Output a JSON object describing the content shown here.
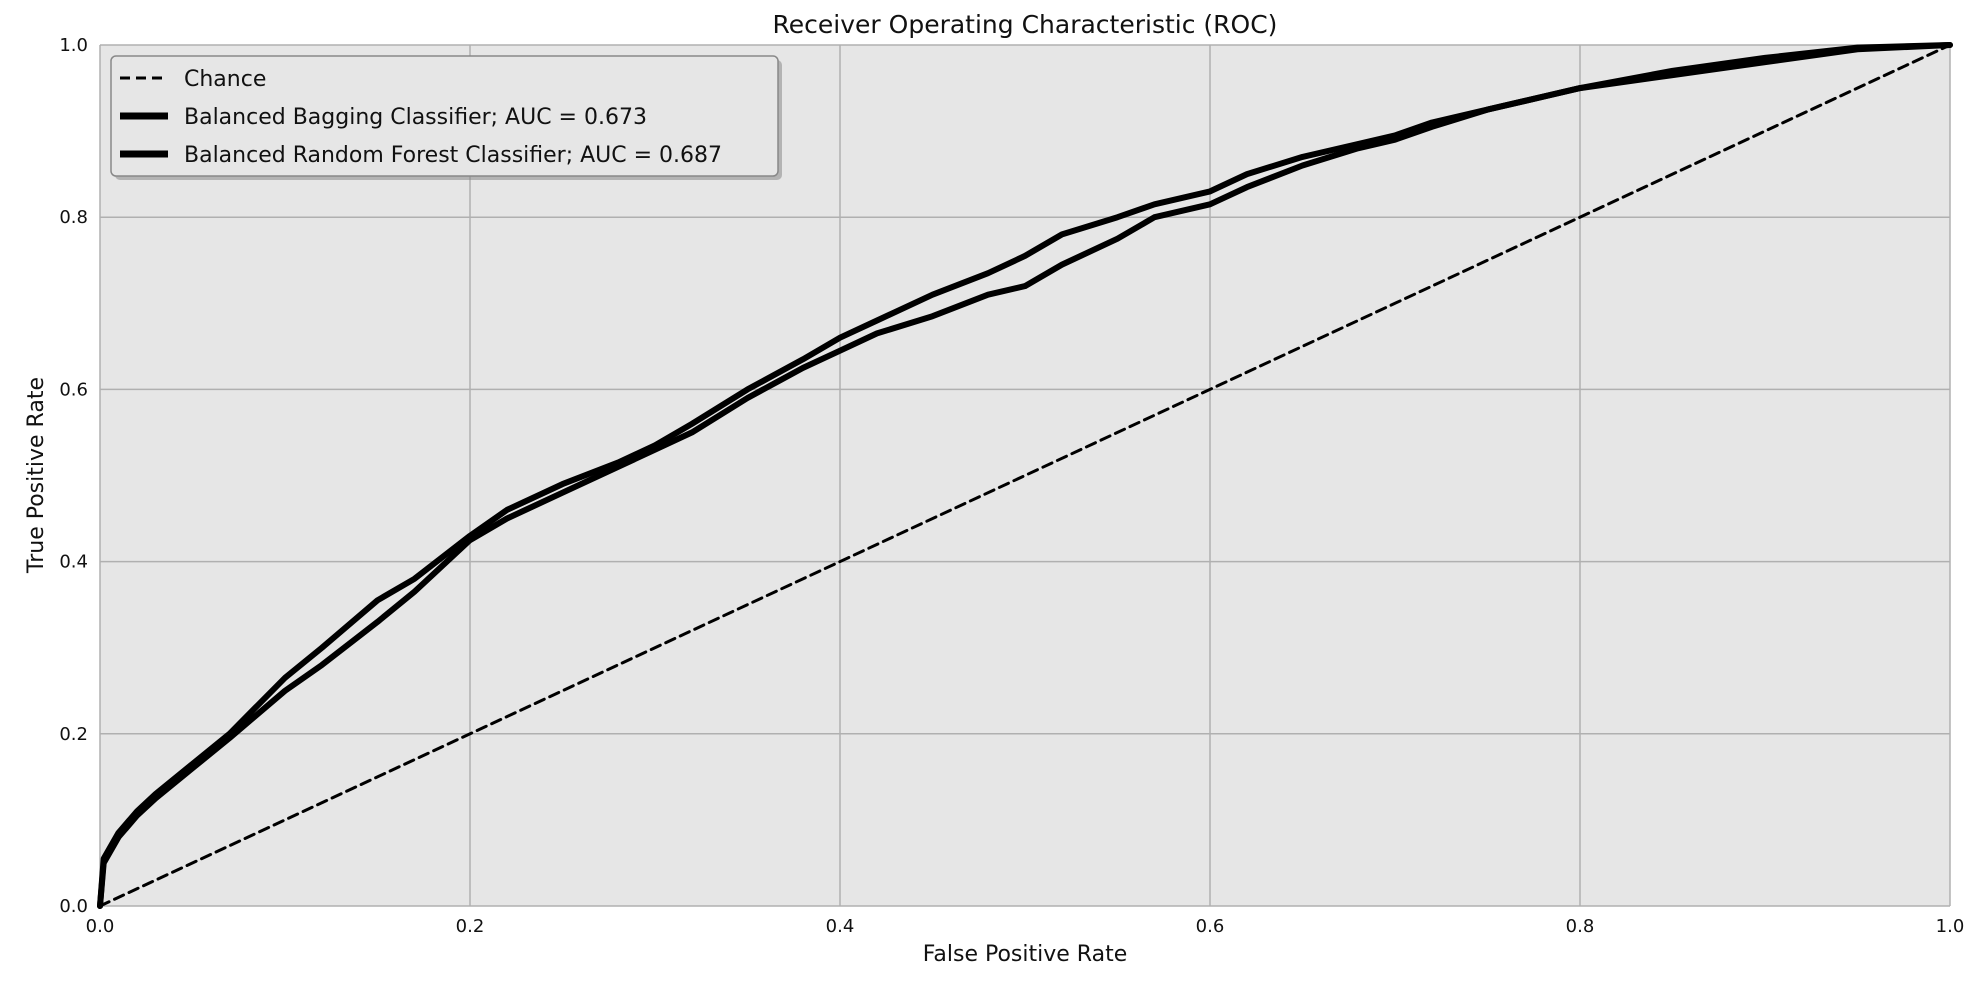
{
  "chart_data": {
    "type": "line",
    "title": "Receiver Operating Characteristic (ROC)",
    "xlabel": "False Positive Rate",
    "ylabel": "True Positive Rate",
    "xlim": [
      0,
      1
    ],
    "ylim": [
      0,
      1
    ],
    "grid": true,
    "legend_position": "top-left",
    "x_ticks": [
      "0.0",
      "0.2",
      "0.4",
      "0.6",
      "0.8",
      "1.0"
    ],
    "y_ticks": [
      "0.0",
      "0.2",
      "0.4",
      "0.6",
      "0.8",
      "1.0"
    ],
    "colors": {
      "plot_background": "#e6e6e6",
      "gridline": "#b0b0b0",
      "line": "#000000",
      "legend_background": "#e6e6e6",
      "legend_border": "#888888"
    },
    "series": [
      {
        "name": "Chance",
        "legend_label": "Chance",
        "style": "dashed",
        "x": [
          0,
          1
        ],
        "y": [
          0,
          1
        ]
      },
      {
        "name": "Balanced Bagging Classifier",
        "legend_label": "Balanced Bagging Classifier; AUC = 0.673",
        "auc": 0.673,
        "style": "solid",
        "x": [
          0,
          0.002,
          0.01,
          0.02,
          0.03,
          0.05,
          0.07,
          0.1,
          0.12,
          0.15,
          0.17,
          0.2,
          0.22,
          0.25,
          0.28,
          0.3,
          0.32,
          0.35,
          0.38,
          0.4,
          0.42,
          0.45,
          0.48,
          0.5,
          0.52,
          0.55,
          0.57,
          0.6,
          0.62,
          0.65,
          0.68,
          0.7,
          0.72,
          0.75,
          0.78,
          0.8,
          0.85,
          0.9,
          0.95,
          1.0
        ],
        "y": [
          0,
          0.05,
          0.08,
          0.105,
          0.125,
          0.16,
          0.195,
          0.25,
          0.28,
          0.33,
          0.365,
          0.425,
          0.45,
          0.48,
          0.51,
          0.53,
          0.55,
          0.59,
          0.625,
          0.645,
          0.665,
          0.685,
          0.71,
          0.72,
          0.745,
          0.775,
          0.8,
          0.815,
          0.835,
          0.86,
          0.88,
          0.89,
          0.905,
          0.925,
          0.94,
          0.95,
          0.965,
          0.98,
          0.995,
          1.0
        ]
      },
      {
        "name": "Balanced Random Forest Classifier",
        "legend_label": "Balanced Random Forest Classifier; AUC = 0.687",
        "auc": 0.687,
        "style": "solid",
        "x": [
          0,
          0.002,
          0.01,
          0.02,
          0.03,
          0.05,
          0.07,
          0.1,
          0.12,
          0.15,
          0.17,
          0.2,
          0.22,
          0.25,
          0.28,
          0.3,
          0.32,
          0.35,
          0.38,
          0.4,
          0.42,
          0.45,
          0.48,
          0.5,
          0.52,
          0.55,
          0.57,
          0.6,
          0.62,
          0.65,
          0.68,
          0.7,
          0.72,
          0.75,
          0.78,
          0.8,
          0.85,
          0.9,
          0.95,
          1.0
        ],
        "y": [
          0,
          0.055,
          0.085,
          0.11,
          0.13,
          0.165,
          0.2,
          0.265,
          0.3,
          0.355,
          0.38,
          0.43,
          0.46,
          0.49,
          0.515,
          0.535,
          0.56,
          0.6,
          0.635,
          0.66,
          0.68,
          0.71,
          0.735,
          0.755,
          0.78,
          0.8,
          0.815,
          0.83,
          0.85,
          0.87,
          0.885,
          0.895,
          0.91,
          0.925,
          0.94,
          0.95,
          0.97,
          0.985,
          0.997,
          1.0
        ]
      }
    ]
  }
}
